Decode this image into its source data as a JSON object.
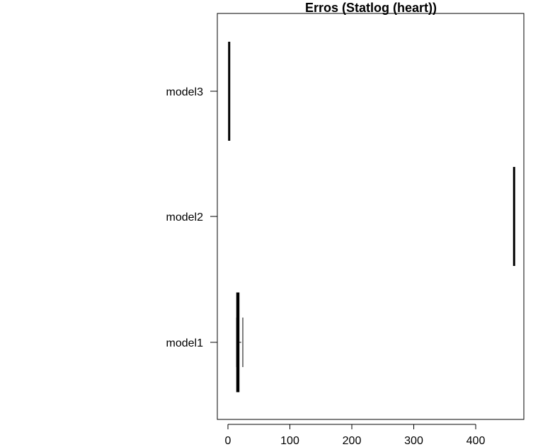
{
  "chart_data": {
    "type": "boxplot",
    "orientation": "horizontal",
    "title": "Erros (Statlog (heart))",
    "xlabel": "",
    "ylabel": "",
    "xlim": [
      -18,
      478
    ],
    "x_ticks": [
      0,
      100,
      200,
      300,
      400
    ],
    "x_tick_labels": [
      "0",
      "100",
      "200",
      "300",
      "400"
    ],
    "categories": [
      "model1",
      "model2",
      "model3"
    ],
    "boxes": [
      {
        "category": "model1",
        "whisker_low": 14,
        "q1": 14,
        "median": 16,
        "q3": 18,
        "whisker_high": 24
      },
      {
        "category": "model2",
        "whisker_low": 462,
        "q1": 462,
        "median": 462,
        "q3": 462,
        "whisker_high": 462
      },
      {
        "category": "model3",
        "whisker_low": 2,
        "q1": 2,
        "median": 2,
        "q3": 3,
        "whisker_high": 3
      }
    ],
    "grid": false,
    "legend": "none"
  }
}
